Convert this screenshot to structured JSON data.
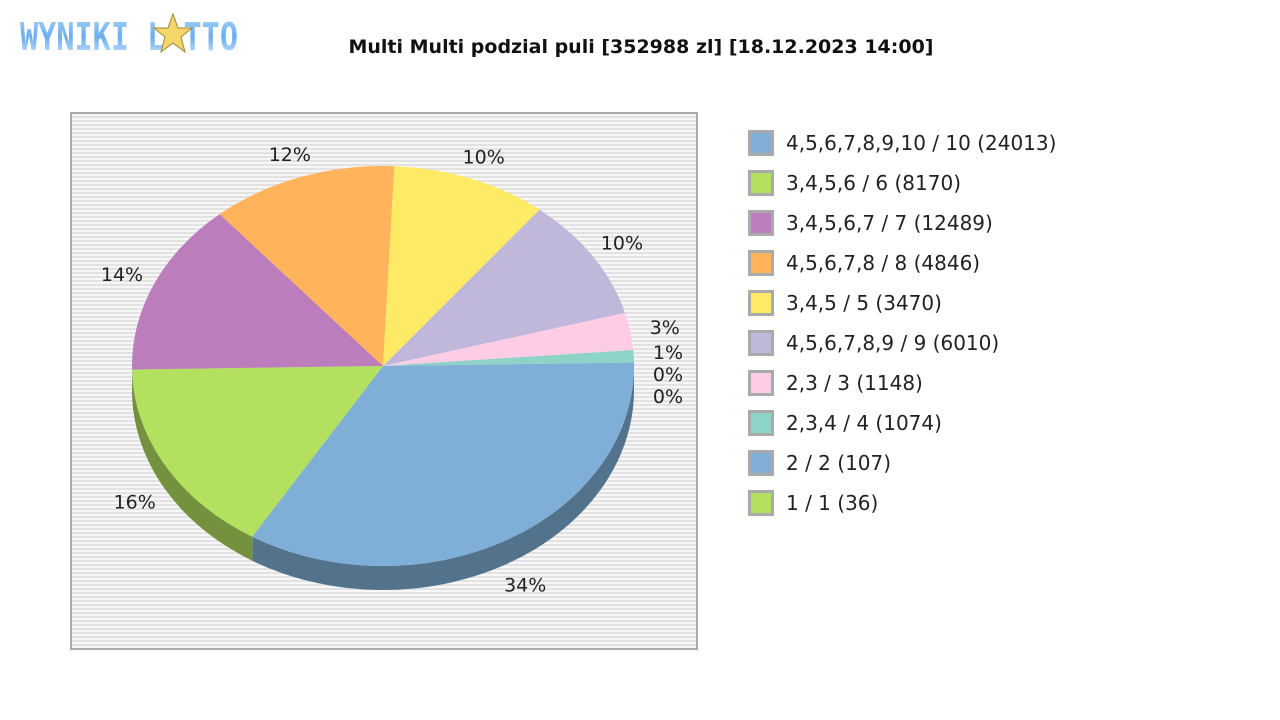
{
  "logo": {
    "text": "WYNIKI LOTTO"
  },
  "chart_data": {
    "type": "pie",
    "title": "Multi Multi podzial puli [352988 zl] [18.12.2023 14:00]",
    "legend_position": "right",
    "slices": [
      {
        "label": "4,5,6,7,8,9,10 / 10 (24013)",
        "percent": 34,
        "percent_label": "34%",
        "color": "#7fafd6"
      },
      {
        "label": "3,4,5,6 / 6 (8170)",
        "percent": 16,
        "percent_label": "16%",
        "color": "#b3e05e"
      },
      {
        "label": "3,4,5,6,7 / 7 (12489)",
        "percent": 14,
        "percent_label": "14%",
        "color": "#bb7dbb"
      },
      {
        "label": "4,5,6,7,8 / 8 (4846)",
        "percent": 12,
        "percent_label": "12%",
        "color": "#ffb35a"
      },
      {
        "label": "3,4,5 / 5 (3470)",
        "percent": 10,
        "percent_label": "10%",
        "color": "#ffea65"
      },
      {
        "label": "4,5,6,7,8,9 / 9 (6010)",
        "percent": 10,
        "percent_label": "10%",
        "color": "#bfb8da"
      },
      {
        "label": "2,3 / 3 (1148)",
        "percent": 3,
        "percent_label": "3%",
        "color": "#ffcce5"
      },
      {
        "label": "2,3,4 / 4 (1074)",
        "percent": 1,
        "percent_label": "1%",
        "color": "#8dd3c7"
      },
      {
        "label": "2 / 2 (107)",
        "percent": 0,
        "percent_label": "0%",
        "color": "#7fafd6"
      },
      {
        "label": "1 / 1 (36)",
        "percent": 0,
        "percent_label": "0%",
        "color": "#b3e05e"
      }
    ]
  }
}
